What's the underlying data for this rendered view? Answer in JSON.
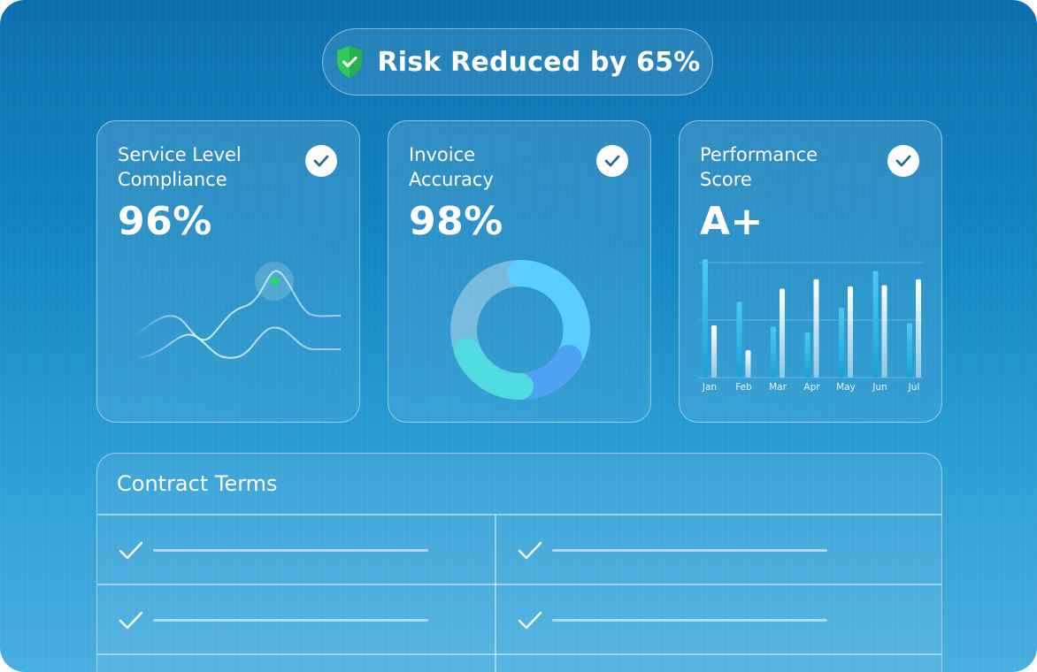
{
  "badge": {
    "text": "Risk Reduced by 65%",
    "icon": "shield-check-icon",
    "icon_color": "#31c95a"
  },
  "cards": [
    {
      "title_line1": "Service Level",
      "title_line2": "Compliance",
      "value": "96%",
      "check_icon": "checkmark-icon"
    },
    {
      "title_line1": "Invoice",
      "title_line2": "Accuracy",
      "value": "98%",
      "check_icon": "checkmark-icon"
    },
    {
      "title_line1": "Performance",
      "title_line2": "Score",
      "value": "A+",
      "check_icon": "checkmark-icon"
    }
  ],
  "chart_data": {
    "type": "bar",
    "categories": [
      "Jan",
      "Feb",
      "Mar",
      "Apr",
      "May",
      "Jun",
      "Jul"
    ],
    "series": [
      {
        "values": [
          100,
          64,
          43,
          38,
          59,
          90,
          46
        ]
      },
      {
        "values": [
          44,
          23,
          75,
          83,
          77,
          78,
          83
        ]
      }
    ],
    "ylim": [
      0,
      100
    ],
    "colors": [
      "#3cbfe9",
      "#ffffff"
    ]
  },
  "contract_terms": {
    "title": "Contract Terms",
    "rows": [
      {
        "left_icon": "checkmark-icon",
        "right_icon": "checkmark-icon"
      },
      {
        "left_icon": "checkmark-icon",
        "right_icon": "checkmark-icon"
      }
    ]
  },
  "colors": {
    "background_top": "#0b6fae",
    "background_bottom": "#49aee0",
    "check": "#1f6f93",
    "line_highlight": "#23d86d",
    "donut_light": "#5ccdff",
    "donut_blue": "#4ea2f4",
    "donut_teal": "#4fdbe0"
  }
}
